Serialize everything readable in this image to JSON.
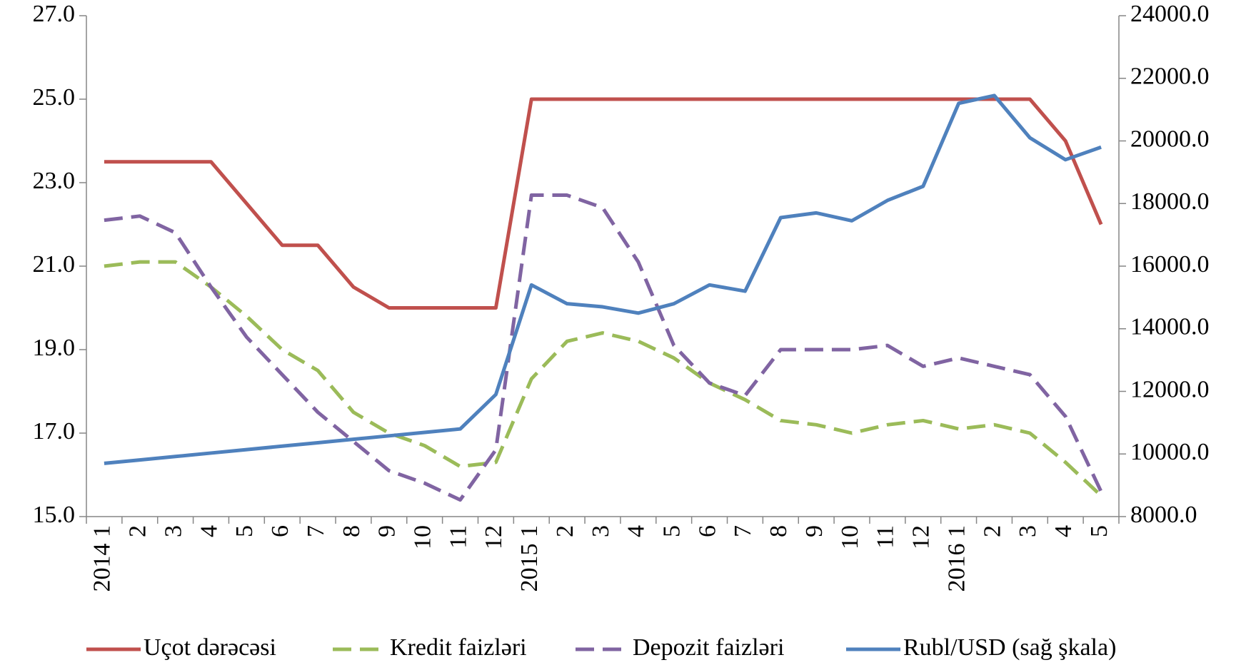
{
  "chart_data": {
    "type": "line",
    "categories": [
      "2014 1",
      "2",
      "3",
      "4",
      "5",
      "6",
      "7",
      "8",
      "9",
      "10",
      "11",
      "12",
      "2015 1",
      "2",
      "3",
      "4",
      "5",
      "6",
      "7",
      "8",
      "9",
      "10",
      "11",
      "12",
      "2016 1",
      "2",
      "3",
      "4",
      "5"
    ],
    "series": [
      {
        "name": "Uçot dərəcəsi",
        "color": "#c0504d",
        "dashed": false,
        "values": [
          23.5,
          23.5,
          23.5,
          23.5,
          22.5,
          21.5,
          21.5,
          20.5,
          20,
          20,
          20,
          20,
          25,
          25,
          25,
          25,
          25,
          25,
          25,
          25,
          25,
          25,
          25,
          25,
          25,
          25,
          25,
          24,
          22
        ]
      },
      {
        "name": "Kredit faizləri",
        "color": "#9bbb59",
        "dashed": true,
        "values": [
          21,
          21.1,
          21.1,
          20.5,
          19.8,
          19,
          18.5,
          17.5,
          17,
          16.7,
          16.2,
          16.3,
          18.3,
          19.2,
          19.4,
          19.2,
          18.8,
          18.2,
          17.8,
          17.3,
          17.2,
          17,
          17.2,
          17.3,
          17.1,
          17.2,
          17,
          16.3,
          15.5
        ]
      },
      {
        "name": "Depozit faizləri",
        "color": "#8064a2",
        "dashed": true,
        "values": [
          22.1,
          22.2,
          21.8,
          20.5,
          19.3,
          18.4,
          17.5,
          16.8,
          16.1,
          15.8,
          15.4,
          16.6,
          22.7,
          22.7,
          22.4,
          21.1,
          19.1,
          18.2,
          17.9,
          19,
          19,
          19,
          19.1,
          18.6,
          18.8,
          18.6,
          18.4,
          17.4,
          15.6
        ]
      },
      {
        "name": "Rubl/USD (sağ şkala)",
        "color": "#4f81bd",
        "dashed": false,
        "axis": "y2",
        "values": [
          9700,
          9810,
          9920,
          10030,
          10140,
          10250,
          10360,
          10470,
          10580,
          10690,
          10800,
          11900,
          15400,
          14800,
          14700,
          14500,
          14800,
          15400,
          15200,
          17550,
          17700,
          17450,
          18100,
          18550,
          21200,
          21450,
          20100,
          19400,
          19800
        ]
      }
    ],
    "ylim": [
      15,
      27
    ],
    "yticks": [
      {
        "value": 15,
        "label": "15.0"
      },
      {
        "value": 17,
        "label": "17.0"
      },
      {
        "value": 19,
        "label": "19.0"
      },
      {
        "value": 21,
        "label": "21.0"
      },
      {
        "value": 23,
        "label": "23.0"
      },
      {
        "value": 25,
        "label": "25.0"
      },
      {
        "value": 27,
        "label": "27.0"
      }
    ],
    "y2lim": [
      8000,
      24000
    ],
    "y2ticks": [
      {
        "value": 8000,
        "label": "8000.0"
      },
      {
        "value": 10000,
        "label": "10000.0"
      },
      {
        "value": 12000,
        "label": "12000.0"
      },
      {
        "value": 14000,
        "label": "14000.0"
      },
      {
        "value": 16000,
        "label": "16000.0"
      },
      {
        "value": 18000,
        "label": "18000.0"
      },
      {
        "value": 20000,
        "label": "20000.0"
      },
      {
        "value": 22000,
        "label": "22000.0"
      },
      {
        "value": 24000,
        "label": "24000.0"
      }
    ],
    "legend": "bottom"
  }
}
